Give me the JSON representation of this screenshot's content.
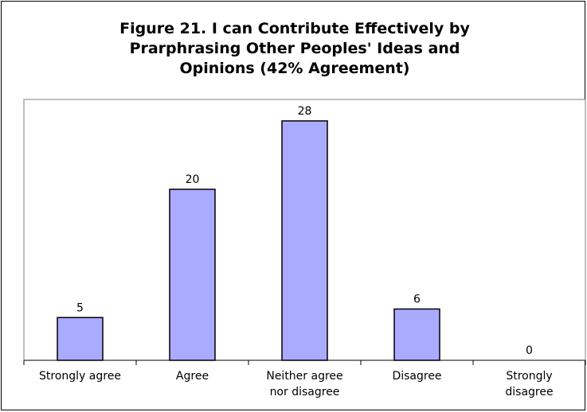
{
  "chart_data": {
    "type": "bar",
    "title_lines": [
      "Figure 21. I can Contribute Effectively by",
      "Prarphrasing Other Peoples' Ideas and",
      "Opinions (42% Agreement)"
    ],
    "categories": [
      [
        "Strongly agree"
      ],
      [
        "Agree"
      ],
      [
        "Neither agree",
        "nor disagree"
      ],
      [
        "Disagree"
      ],
      [
        "Strongly",
        "disagree"
      ]
    ],
    "values": [
      5,
      20,
      28,
      6,
      0
    ],
    "data_labels": [
      "5",
      "20",
      "28",
      "6",
      "0"
    ],
    "ylim": [
      0,
      30
    ],
    "grid": false,
    "legend": false,
    "bar_color": "#aaaaff",
    "bar_stroke": "#000000"
  }
}
